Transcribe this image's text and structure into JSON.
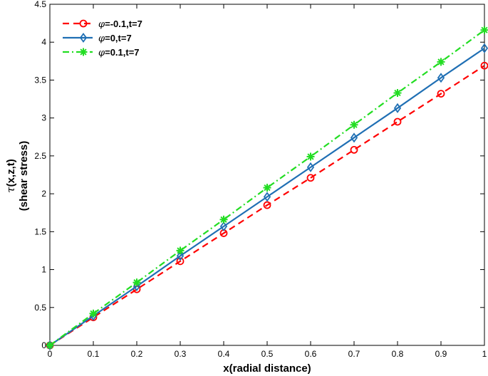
{
  "chart_data": {
    "type": "line",
    "xlabel": "x(radial distance)",
    "ylabel_symbol": "τ",
    "ylabel_line1": "(x,z,t)",
    "ylabel_line2": "(shear stress)",
    "xlim": [
      0,
      1
    ],
    "ylim": [
      0,
      4.5
    ],
    "xticks": [
      "0",
      "0.1",
      "0.2",
      "0.3",
      "0.4",
      "0.5",
      "0.6",
      "0.7",
      "0.8",
      "0.9",
      "1"
    ],
    "yticks": [
      "0",
      "0.5",
      "1",
      "1.5",
      "2",
      "2.5",
      "3",
      "3.5",
      "4",
      "4.5"
    ],
    "grid": false,
    "legend_position": "top-left",
    "x": [
      0,
      0.1,
      0.2,
      0.3,
      0.4,
      0.5,
      0.6,
      0.7,
      0.8,
      0.9,
      1.0
    ],
    "series": [
      {
        "name": "φ=-0.1,t=7",
        "symbol": "φ",
        "rest": "=-0.1,t=7",
        "color": "#ff0000",
        "line_style": "dashed",
        "marker": "circle",
        "values": [
          0,
          0.37,
          0.74,
          1.11,
          1.48,
          1.85,
          2.21,
          2.58,
          2.95,
          3.32,
          3.69
        ]
      },
      {
        "name": "φ=0,t=7",
        "symbol": "φ",
        "rest": "=0,t=7",
        "color": "#1f6fb4",
        "line_style": "solid",
        "marker": "diamond",
        "values": [
          0,
          0.39,
          0.78,
          1.18,
          1.57,
          1.96,
          2.35,
          2.74,
          3.13,
          3.53,
          3.92
        ]
      },
      {
        "name": "φ=0.1,t=7",
        "symbol": "φ",
        "rest": "=0.1,t=7",
        "color": "#22dd22",
        "line_style": "dashdot",
        "marker": "asterisk",
        "values": [
          0,
          0.42,
          0.83,
          1.25,
          1.66,
          2.08,
          2.49,
          2.91,
          3.33,
          3.74,
          4.16
        ]
      }
    ]
  }
}
